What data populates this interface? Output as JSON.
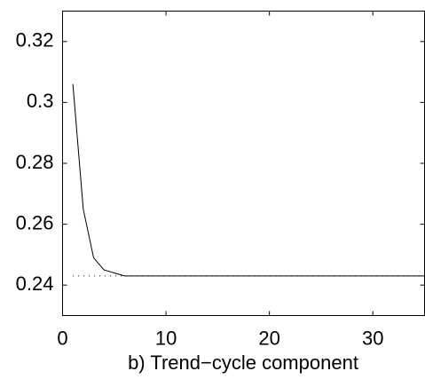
{
  "chart_data": {
    "type": "line",
    "xlabel": "b) Trend−cycle component",
    "x": [
      1,
      2,
      3,
      4,
      5,
      6,
      7,
      8,
      9,
      10,
      11,
      12,
      13,
      14,
      15,
      16,
      17,
      18,
      19,
      20,
      21,
      22,
      23,
      24,
      25,
      26,
      27,
      28,
      29,
      30,
      31,
      32,
      33,
      34,
      35
    ],
    "series": [
      {
        "color": "#000000",
        "style": "solid",
        "values": [
          0.306,
          0.265,
          0.249,
          0.245,
          0.244,
          0.243,
          0.243,
          0.243,
          0.243,
          0.243,
          0.243,
          0.243,
          0.243,
          0.243,
          0.243,
          0.243,
          0.243,
          0.243,
          0.243,
          0.243,
          0.243,
          0.243,
          0.243,
          0.243,
          0.243,
          0.243,
          0.243,
          0.243,
          0.243,
          0.243,
          0.243,
          0.243,
          0.243,
          0.243,
          0.243
        ]
      },
      {
        "color": "#000000",
        "style": "dotted",
        "values": [
          0.243,
          0.243,
          0.243,
          0.243,
          0.243,
          0.243,
          0.243,
          0.243,
          0.243,
          0.243,
          0.243,
          0.243,
          0.243,
          0.243,
          0.243,
          0.243,
          0.243,
          0.243,
          0.243,
          0.243,
          0.243,
          0.243,
          0.243,
          0.243,
          0.243,
          0.243,
          0.243,
          0.243,
          0.243,
          0.243,
          0.243,
          0.243,
          0.243,
          0.243,
          0.243
        ]
      }
    ],
    "xlim": [
      0,
      35
    ],
    "ylim": [
      0.23,
      0.33
    ],
    "xticks": [
      0,
      10,
      20,
      30
    ],
    "yticks": [
      0.24,
      0.26,
      0.28,
      0.3,
      0.32
    ]
  }
}
